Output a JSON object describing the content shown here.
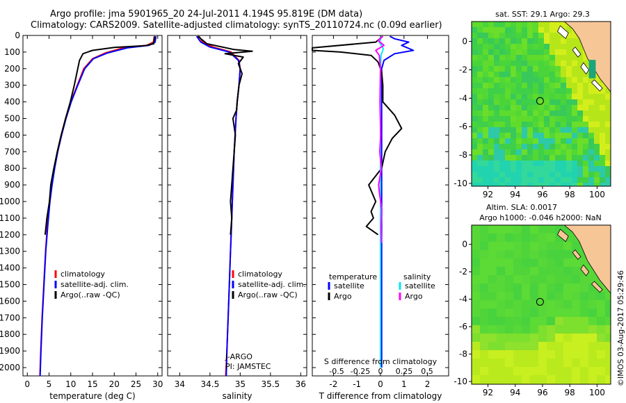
{
  "header": {
    "line1": "Argo profile: jma 5901965_20 24-Jul-2011 4.194S 95.819E (DM data)",
    "line2": "Climatology: CARS2009. Satellite-adjusted climatology: synTS_20110724.nc (0.09d earlier)"
  },
  "colors": {
    "climatology": "#ff0000",
    "satellite": "#0000ff",
    "argo": "#000000",
    "argo_salinity": "#ff00ff",
    "satellite_salinity": "#00e5ff"
  },
  "watermark": "©IMOS 03-Aug-2017 05:29:46",
  "chart_data": [
    {
      "type": "line",
      "name": "temperature-profile",
      "xlabel": "temperature (deg C)",
      "ylabel": "",
      "xlim": [
        -1,
        31
      ],
      "ylim": [
        0,
        2050
      ],
      "xticks": [
        0,
        5,
        10,
        15,
        20,
        25,
        30
      ],
      "yticks": [
        0,
        100,
        200,
        300,
        400,
        500,
        600,
        700,
        800,
        900,
        1000,
        1100,
        1200,
        1300,
        1400,
        1500,
        1600,
        1700,
        1800,
        1900,
        2000
      ],
      "legend": [
        "climatology",
        "satellite-adj. clim.",
        "Argo(..raw -QC)"
      ],
      "series": [
        {
          "name": "climatology",
          "points": [
            [
              29.2,
              5
            ],
            [
              29.0,
              40
            ],
            [
              27.5,
              60
            ],
            [
              22,
              75
            ],
            [
              18,
              105
            ],
            [
              15,
              140
            ],
            [
              13,
              200
            ],
            [
              11.5,
              300
            ],
            [
              10,
              400
            ],
            [
              8.8,
              500
            ],
            [
              7.8,
              600
            ],
            [
              6.9,
              700
            ],
            [
              6.2,
              800
            ],
            [
              5.6,
              900
            ],
            [
              5.1,
              1000
            ],
            [
              4.6,
              1150
            ],
            [
              4.2,
              1300
            ],
            [
              3.8,
              1500
            ],
            [
              3.4,
              1700
            ],
            [
              3.1,
              1900
            ],
            [
              2.9,
              2050
            ]
          ]
        },
        {
          "name": "satellite-adj. clim.",
          "points": [
            [
              29.6,
              5
            ],
            [
              29.4,
              40
            ],
            [
              28,
              60
            ],
            [
              23,
              75
            ],
            [
              18.5,
              105
            ],
            [
              15.2,
              140
            ],
            [
              13.2,
              200
            ],
            [
              11.6,
              300
            ],
            [
              10.1,
              400
            ],
            [
              8.9,
              500
            ],
            [
              7.9,
              600
            ],
            [
              7.0,
              700
            ],
            [
              6.3,
              800
            ],
            [
              5.7,
              900
            ],
            [
              5.2,
              1000
            ],
            [
              4.7,
              1150
            ],
            [
              4.25,
              1300
            ],
            [
              3.85,
              1500
            ],
            [
              3.45,
              1700
            ],
            [
              3.15,
              1900
            ],
            [
              2.95,
              2050
            ]
          ]
        },
        {
          "name": "Argo(..raw -QC)",
          "points": [
            [
              29.3,
              5
            ],
            [
              29.1,
              50
            ],
            [
              27,
              62
            ],
            [
              20,
              72
            ],
            [
              15,
              90
            ],
            [
              12.8,
              110
            ],
            [
              12,
              150
            ],
            [
              11.6,
              200
            ],
            [
              10.8,
              300
            ],
            [
              9.9,
              400
            ],
            [
              8.8,
              500
            ],
            [
              7.8,
              600
            ],
            [
              6.9,
              700
            ],
            [
              6.1,
              800
            ],
            [
              5.4,
              900
            ],
            [
              5.1,
              1000
            ],
            [
              4.5,
              1100
            ],
            [
              4.1,
              1200
            ]
          ]
        }
      ]
    },
    {
      "type": "line",
      "name": "salinity-profile",
      "xlabel": "salinity",
      "xlim": [
        33.8,
        36.1
      ],
      "ylim": [
        0,
        2050
      ],
      "xticks": [
        34,
        34.5,
        35,
        35.5,
        36
      ],
      "legend": [
        "climatology",
        "satellite-adj. clim.",
        "Argo(..raw -QC)"
      ],
      "annotations": [
        "J-ARGO",
        "PI: JAMSTEC"
      ],
      "series": [
        {
          "name": "climatology",
          "points": [
            [
              34.32,
              5
            ],
            [
              34.38,
              40
            ],
            [
              34.55,
              70
            ],
            [
              34.85,
              100
            ],
            [
              34.98,
              150
            ],
            [
              35.0,
              200
            ],
            [
              34.98,
              300
            ],
            [
              34.95,
              400
            ],
            [
              34.93,
              500
            ],
            [
              34.9,
              700
            ],
            [
              34.88,
              900
            ],
            [
              34.86,
              1100
            ],
            [
              34.84,
              1300
            ],
            [
              34.82,
              1500
            ],
            [
              34.8,
              1700
            ],
            [
              34.78,
              1900
            ],
            [
              34.76,
              2050
            ]
          ]
        },
        {
          "name": "satellite-adj. clim.",
          "points": [
            [
              34.28,
              5
            ],
            [
              34.35,
              40
            ],
            [
              34.5,
              70
            ],
            [
              34.82,
              100
            ],
            [
              34.97,
              150
            ],
            [
              35.0,
              200
            ],
            [
              34.98,
              300
            ],
            [
              34.95,
              400
            ],
            [
              34.93,
              500
            ],
            [
              34.9,
              700
            ],
            [
              34.88,
              900
            ],
            [
              34.86,
              1100
            ],
            [
              34.84,
              1300
            ],
            [
              34.82,
              1500
            ],
            [
              34.8,
              1700
            ],
            [
              34.78,
              1900
            ],
            [
              34.77,
              2050
            ]
          ]
        },
        {
          "name": "Argo(..raw -QC)",
          "points": [
            [
              34.3,
              5
            ],
            [
              34.45,
              50
            ],
            [
              34.9,
              85
            ],
            [
              35.2,
              95
            ],
            [
              34.75,
              110
            ],
            [
              35.05,
              130
            ],
            [
              34.97,
              170
            ],
            [
              35.03,
              230
            ],
            [
              34.98,
              300
            ],
            [
              34.95,
              400
            ],
            [
              34.94,
              450
            ],
            [
              34.88,
              500
            ],
            [
              34.92,
              600
            ],
            [
              34.9,
              700
            ],
            [
              34.88,
              800
            ],
            [
              34.86,
              900
            ],
            [
              34.84,
              1000
            ],
            [
              34.86,
              1100
            ],
            [
              34.84,
              1200
            ]
          ]
        }
      ]
    },
    {
      "type": "line",
      "name": "difference-profile",
      "xlabel": "T difference from climatology",
      "xlabel2": "S difference from climatology",
      "xlim": [
        -2.9,
        2.9
      ],
      "ylim": [
        0,
        2050
      ],
      "xticks": [
        -2,
        -1,
        0,
        1,
        2
      ],
      "xticks2_labels": [
        "-0.5",
        "-0.25",
        "0",
        "0.25",
        "0.5"
      ],
      "legend_titles": [
        "temperature",
        "salinity"
      ],
      "legend": [
        "satellite",
        "Argo",
        "satellite",
        "Argo"
      ],
      "series": [
        {
          "name": "satellite (T)",
          "points": [
            [
              0.4,
              5
            ],
            [
              0.6,
              20
            ],
            [
              1.2,
              40
            ],
            [
              0.9,
              60
            ],
            [
              1.4,
              90
            ],
            [
              0.6,
              110
            ],
            [
              0.15,
              150
            ],
            [
              0.05,
              200
            ],
            [
              0.05,
              300
            ],
            [
              0.05,
              500
            ],
            [
              0.05,
              1000
            ],
            [
              0.05,
              1500
            ],
            [
              0.05,
              2000
            ]
          ]
        },
        {
          "name": "Argo (T)",
          "points": [
            [
              0.1,
              5
            ],
            [
              -0.2,
              40
            ],
            [
              -2.9,
              75
            ],
            [
              -2.9,
              90
            ],
            [
              -1.7,
              100
            ],
            [
              -0.4,
              120
            ],
            [
              -0.1,
              160
            ],
            [
              0.05,
              220
            ],
            [
              0.1,
              300
            ],
            [
              0.1,
              400
            ],
            [
              0.6,
              480
            ],
            [
              0.9,
              560
            ],
            [
              0.5,
              620
            ],
            [
              0.2,
              700
            ],
            [
              0.05,
              800
            ],
            [
              -0.5,
              900
            ],
            [
              -0.2,
              1000
            ],
            [
              -0.4,
              1060
            ],
            [
              -0.3,
              1100
            ],
            [
              -0.6,
              1150
            ],
            [
              -0.1,
              1200
            ]
          ]
        },
        {
          "name": "satellite (S)",
          "points": [
            [
              0.06,
              5
            ],
            [
              -0.05,
              40
            ],
            [
              0.12,
              80
            ],
            [
              0.02,
              120
            ],
            [
              0.0,
              200
            ],
            [
              0.0,
              500
            ],
            [
              0.0,
              1000
            ],
            [
              0.0,
              1500
            ],
            [
              0.0,
              2000
            ]
          ]
        },
        {
          "name": "Argo (S)",
          "points": [
            [
              0.1,
              5
            ],
            [
              -0.1,
              30
            ],
            [
              0.15,
              60
            ],
            [
              -0.2,
              90
            ],
            [
              -0.05,
              120
            ],
            [
              0.0,
              200
            ],
            [
              -0.02,
              400
            ],
            [
              0.01,
              600
            ],
            [
              -0.03,
              700
            ],
            [
              0.04,
              800
            ],
            [
              -0.08,
              900
            ],
            [
              -0.04,
              950
            ],
            [
              0.06,
              1050
            ],
            [
              0.03,
              1150
            ],
            [
              0.05,
              1250
            ]
          ]
        }
      ]
    },
    {
      "type": "heatmap",
      "name": "sst-map",
      "title": "sat. SST: 29.1 Argo: 29.3",
      "xlim": [
        90.8,
        101
      ],
      "ylim": [
        -10.2,
        1.4
      ],
      "xticks": [
        92,
        94,
        96,
        98,
        100
      ],
      "yticks": [
        0,
        -2,
        -4,
        -6,
        -8,
        -10
      ],
      "marker": [
        95.819,
        -4.194
      ]
    },
    {
      "type": "heatmap",
      "name": "sla-map",
      "title": "Altim. SLA: 0.0017",
      "title2": "Argo h1000: -0.046 h2000: NaN",
      "xlim": [
        90.8,
        101
      ],
      "ylim": [
        -10.2,
        1.4
      ],
      "xticks": [
        92,
        94,
        96,
        98,
        100
      ],
      "yticks": [
        0,
        -2,
        -4,
        -6,
        -8,
        -10
      ],
      "marker": [
        95.819,
        -4.194
      ]
    }
  ]
}
